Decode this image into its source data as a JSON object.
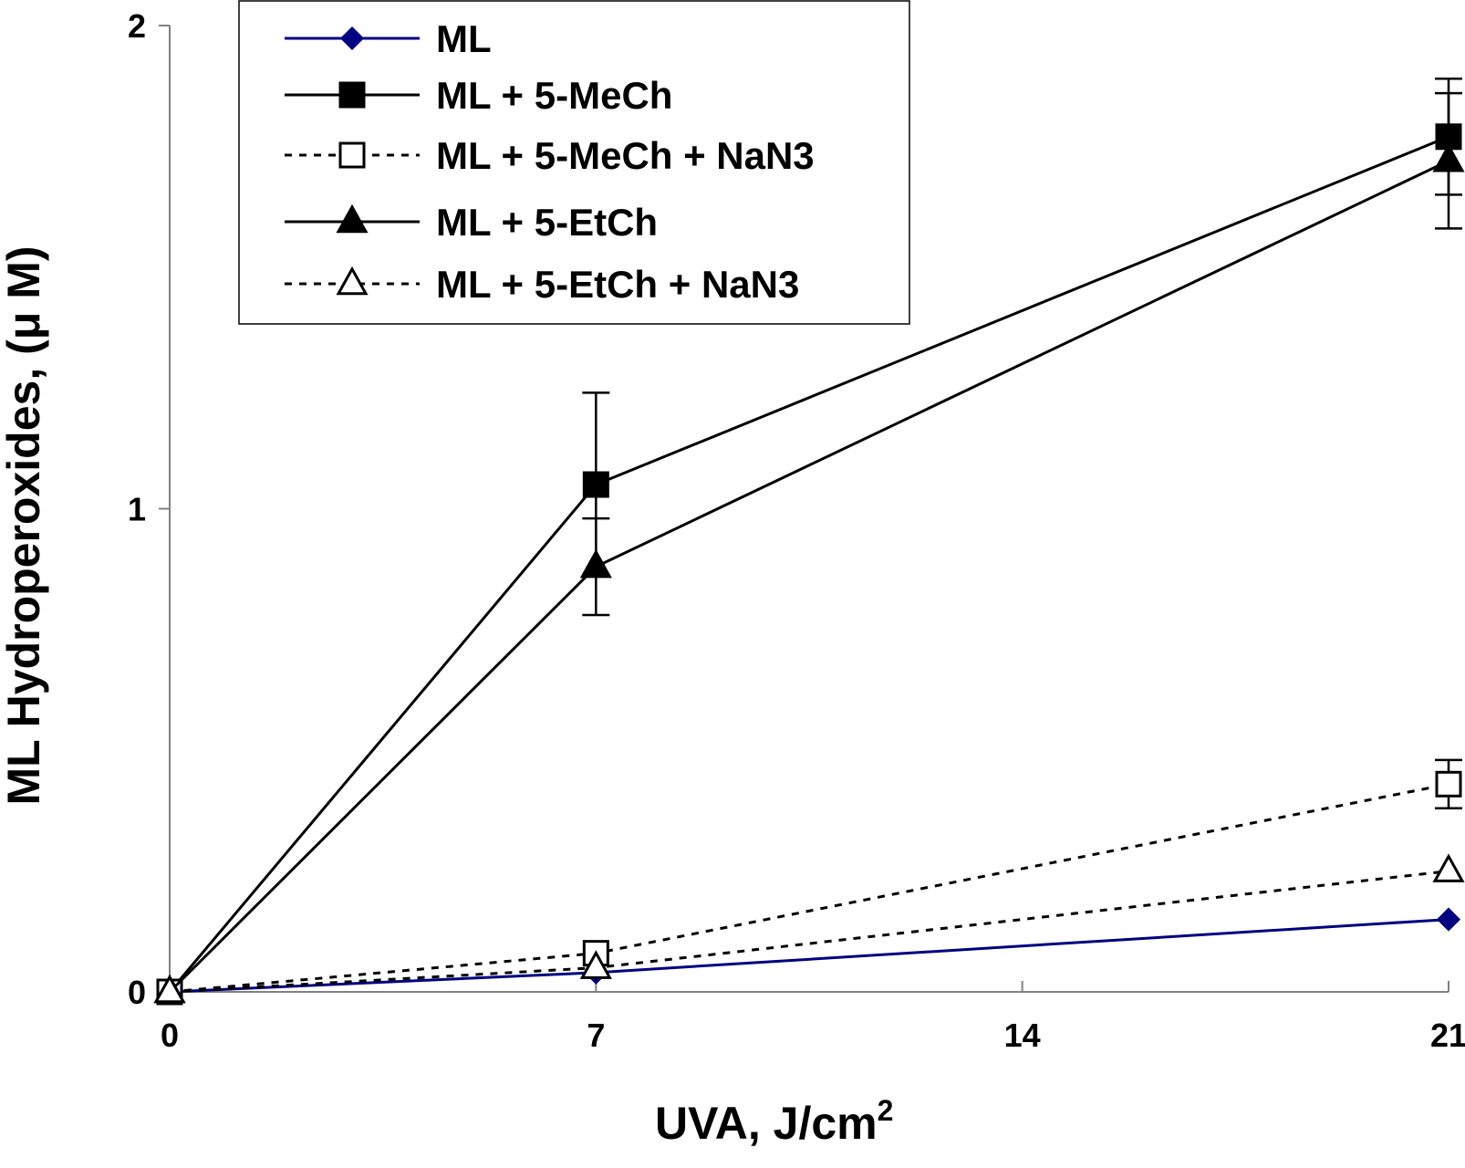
{
  "chart_data": {
    "type": "line",
    "title": "",
    "xlabel": "UVA, J/cm",
    "xlabel_superscript": "2",
    "ylabel": "ML Hydroperoxides, (μ M)",
    "x": [
      0,
      7,
      21
    ],
    "xlim": [
      0,
      21
    ],
    "ylim": [
      0,
      2
    ],
    "xticks": [
      0,
      7,
      14,
      21
    ],
    "yticks": [
      0,
      1,
      2
    ],
    "xtick_labels": [
      "0",
      "7",
      "14",
      "21"
    ],
    "ytick_labels": [
      "0",
      "1",
      "2"
    ],
    "grid": false,
    "legend_position": "top-left",
    "series": [
      {
        "name": "ML",
        "values": [
          0,
          0.04,
          0.15
        ],
        "errors": [
          0,
          0,
          0
        ],
        "color": "#000080",
        "line": "solid",
        "marker": "diamond",
        "filled": true
      },
      {
        "name": "ML + 5-MeCh",
        "values": [
          0,
          1.05,
          1.77
        ],
        "errors": [
          0,
          0.19,
          0.12
        ],
        "color": "#000000",
        "line": "solid",
        "marker": "square",
        "filled": true
      },
      {
        "name": "ML + 5-MeCh + NaN3",
        "values": [
          0,
          0.08,
          0.43
        ],
        "errors": [
          0,
          0,
          0.05
        ],
        "color": "#000000",
        "line": "dotted",
        "marker": "square",
        "filled": false
      },
      {
        "name": "ML + 5-EtCh",
        "values": [
          0,
          0.88,
          1.72
        ],
        "errors": [
          0,
          0.1,
          0.14
        ],
        "color": "#000000",
        "line": "solid",
        "marker": "triangle",
        "filled": true
      },
      {
        "name": "ML + 5-EtCh + NaN3",
        "values": [
          0,
          0.05,
          0.25
        ],
        "errors": [
          0,
          0,
          0
        ],
        "color": "#000000",
        "line": "dotted",
        "marker": "triangle",
        "filled": false
      }
    ]
  }
}
